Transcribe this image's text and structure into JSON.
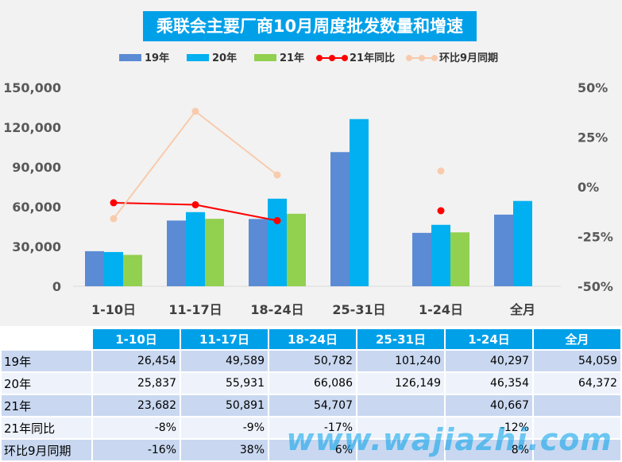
{
  "chart_data": {
    "type": "bar",
    "title": "乘联会主要厂商10月周度批发数量和增速",
    "categories": [
      "1-10日",
      "11-17日",
      "18-24日",
      "25-31日",
      "1-24日",
      "全月"
    ],
    "series": [
      {
        "name": "19年",
        "kind": "bar",
        "axis": "left",
        "color": "#5b8bd4",
        "values": [
          26454,
          49589,
          50782,
          101240,
          40297,
          54059
        ]
      },
      {
        "name": "20年",
        "kind": "bar",
        "axis": "left",
        "color": "#00b0f0",
        "values": [
          25837,
          55931,
          66086,
          126149,
          46354,
          64372
        ]
      },
      {
        "name": "21年",
        "kind": "bar",
        "axis": "left",
        "color": "#92d050",
        "values": [
          23682,
          50891,
          54707,
          null,
          40667,
          null
        ]
      },
      {
        "name": "21年同比",
        "kind": "line",
        "axis": "right",
        "color": "#ff0000",
        "values": [
          -8,
          -9,
          -17,
          null,
          -12,
          null
        ]
      },
      {
        "name": "环比9月同期",
        "kind": "line",
        "axis": "right",
        "color": "#f8cbad",
        "values": [
          -16,
          38,
          6,
          null,
          8,
          null
        ]
      }
    ],
    "ylim_left": [
      0,
      150000
    ],
    "yticks_left": [
      "0",
      "30,000",
      "60,000",
      "90,000",
      "120,000",
      "150,000"
    ],
    "ylim_right": [
      -50,
      50
    ],
    "yticks_right": [
      "-50%",
      "-25%",
      "0%",
      "25%",
      "50%"
    ],
    "legend": "top",
    "grid": false
  },
  "table": {
    "headers": [
      "1-10日",
      "11-17日",
      "18-24日",
      "25-31日",
      "1-24日",
      "全月"
    ],
    "rows": [
      {
        "label": "19年",
        "cells": [
          "26,454",
          "49,589",
          "50,782",
          "101,240",
          "40,297",
          "54,059"
        ]
      },
      {
        "label": "20年",
        "cells": [
          "25,837",
          "55,931",
          "66,086",
          "126,149",
          "46,354",
          "64,372"
        ]
      },
      {
        "label": "21年",
        "cells": [
          "23,682",
          "50,891",
          "54,707",
          "",
          "40,667",
          ""
        ]
      },
      {
        "label": "21年同比",
        "cells": [
          "-8%",
          "-9%",
          "-17%",
          "",
          "-12%",
          ""
        ]
      },
      {
        "label": "环比9月同期",
        "cells": [
          "-16%",
          "38%",
          "6%",
          "",
          "8%",
          ""
        ]
      }
    ]
  },
  "watermark": "www.wajiazhi.com"
}
